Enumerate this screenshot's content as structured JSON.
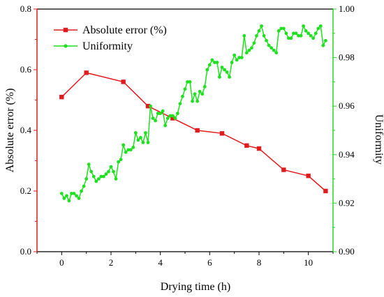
{
  "chart_data": {
    "type": "line",
    "xlabel": "Drying time (h)",
    "ylabel": "Absolute error (%)",
    "y2label": "Uniformity",
    "xlim": [
      -1,
      11
    ],
    "ylim": [
      0,
      0.8
    ],
    "y2lim": [
      0.9,
      1.0
    ],
    "x_ticks": [
      0,
      2,
      4,
      6,
      8,
      10
    ],
    "y_ticks": [
      0.0,
      0.2,
      0.4,
      0.6,
      0.8
    ],
    "y2_ticks": [
      0.9,
      0.92,
      0.94,
      0.96,
      0.98,
      1.0
    ],
    "x_tick_labels": [
      "0",
      "2",
      "4",
      "6",
      "8",
      "10"
    ],
    "y_tick_labels": [
      "0.0",
      "0.2",
      "0.4",
      "0.6",
      "0.8"
    ],
    "y2_tick_labels": [
      "0.90",
      "0.92",
      "0.94",
      "0.96",
      "0.98",
      "1.00"
    ],
    "legend_position": "top-left",
    "series": [
      {
        "name": "Absolute error (%)",
        "axis": "left",
        "color": "#e31a1c",
        "marker": "square",
        "x": [
          0,
          1,
          2.5,
          3.5,
          4.5,
          5.5,
          6.5,
          7.5,
          8,
          9,
          10,
          10.7
        ],
        "y": [
          0.51,
          0.59,
          0.56,
          0.48,
          0.44,
          0.4,
          0.39,
          0.35,
          0.34,
          0.27,
          0.25,
          0.2
        ]
      },
      {
        "name": "Uniformity",
        "axis": "right",
        "color": "#1fe01f",
        "marker": "circle",
        "x": [
          0,
          0.1,
          0.2,
          0.3,
          0.4,
          0.5,
          0.6,
          0.7,
          0.8,
          0.9,
          1.0,
          1.1,
          1.2,
          1.3,
          1.4,
          1.5,
          1.6,
          1.7,
          1.8,
          1.9,
          2.0,
          2.1,
          2.2,
          2.3,
          2.4,
          2.5,
          2.6,
          2.7,
          2.8,
          2.9,
          3.0,
          3.1,
          3.2,
          3.3,
          3.4,
          3.5,
          3.6,
          3.7,
          3.8,
          3.9,
          4.0,
          4.1,
          4.2,
          4.3,
          4.4,
          4.5,
          4.6,
          4.7,
          4.8,
          4.9,
          5.0,
          5.1,
          5.2,
          5.3,
          5.4,
          5.5,
          5.6,
          5.7,
          5.8,
          5.9,
          6.0,
          6.1,
          6.2,
          6.3,
          6.4,
          6.5,
          6.6,
          6.7,
          6.8,
          6.9,
          7.0,
          7.1,
          7.2,
          7.3,
          7.4,
          7.5,
          7.6,
          7.7,
          7.8,
          7.9,
          8.0,
          8.1,
          8.2,
          8.3,
          8.4,
          8.5,
          8.6,
          8.7,
          8.8,
          8.9,
          9.0,
          9.1,
          9.2,
          9.3,
          9.4,
          9.5,
          9.6,
          9.7,
          9.8,
          9.9,
          10.0,
          10.1,
          10.2,
          10.3,
          10.4,
          10.5,
          10.6,
          10.7
        ],
        "y": [
          0.924,
          0.922,
          0.923,
          0.921,
          0.924,
          0.924,
          0.923,
          0.922,
          0.925,
          0.927,
          0.93,
          0.936,
          0.933,
          0.931,
          0.929,
          0.93,
          0.931,
          0.931,
          0.932,
          0.933,
          0.935,
          0.933,
          0.93,
          0.937,
          0.938,
          0.944,
          0.941,
          0.942,
          0.942,
          0.943,
          0.949,
          0.946,
          0.947,
          0.945,
          0.949,
          0.945,
          0.96,
          0.955,
          0.954,
          0.957,
          0.957,
          0.958,
          0.952,
          0.955,
          0.956,
          0.956,
          0.955,
          0.957,
          0.961,
          0.964,
          0.967,
          0.97,
          0.97,
          0.962,
          0.965,
          0.962,
          0.966,
          0.965,
          0.968,
          0.975,
          0.977,
          0.979,
          0.978,
          0.978,
          0.972,
          0.976,
          0.975,
          0.974,
          0.972,
          0.978,
          0.981,
          0.979,
          0.98,
          0.98,
          0.989,
          0.982,
          0.983,
          0.984,
          0.986,
          0.989,
          0.991,
          0.993,
          0.989,
          0.987,
          0.985,
          0.984,
          0.983,
          0.982,
          0.991,
          0.992,
          0.992,
          0.99,
          0.988,
          0.988,
          0.99,
          0.99,
          0.989,
          0.989,
          0.993,
          0.991,
          0.99,
          0.989,
          0.988,
          0.99,
          0.992,
          0.993,
          0.985,
          0.987
        ]
      }
    ]
  }
}
